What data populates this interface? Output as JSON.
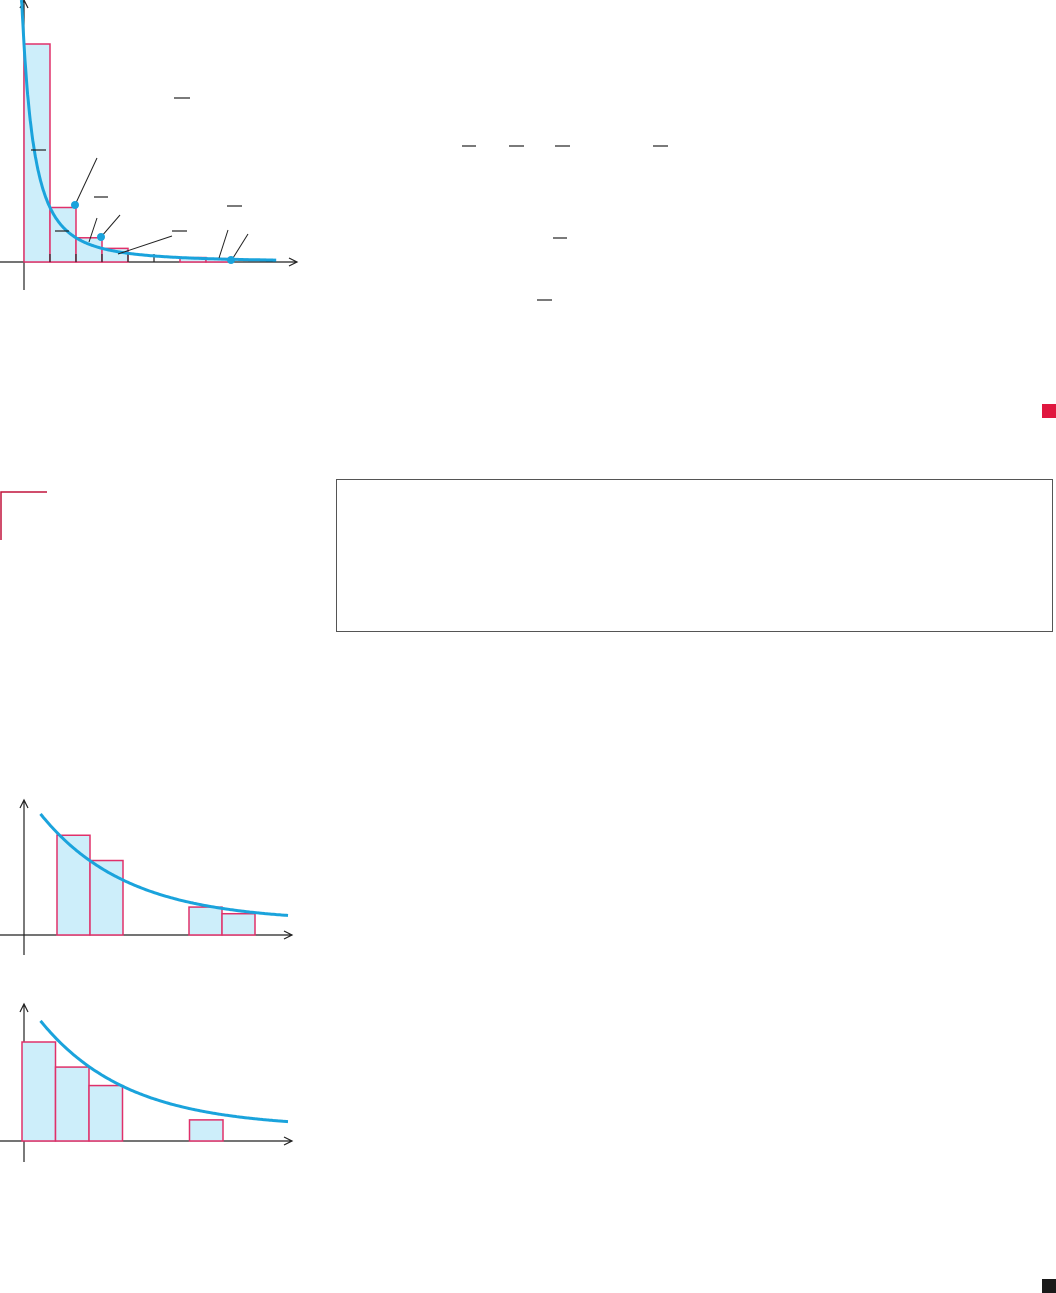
{
  "colors": {
    "bar_fill": "#cdeefa",
    "bar_stroke": "#e0306a",
    "curve": "#1aa3dc",
    "end_marker_red": "#e0173f",
    "end_marker_black": "#1a1a1a"
  },
  "figures": [
    {
      "id": "figure-1",
      "bars": [
        {
          "x0": 1,
          "x1": 2,
          "height": 1
        },
        {
          "x0": 2,
          "x1": 3,
          "height": 0.25
        },
        {
          "x0": 3,
          "x1": 4,
          "height": 0.1111
        },
        {
          "x0": 4,
          "x1": 5,
          "height": 0.0625
        },
        {
          "x0": 7,
          "x1": 8,
          "height": 0.0204
        },
        {
          "x0": 8,
          "x1": 9,
          "height": 0.0156
        }
      ],
      "curve": "y = 1/x^2",
      "marked_points_x": [
        3,
        4,
        9
      ]
    },
    {
      "id": "figure-2",
      "bars": [
        {
          "x0": 1,
          "x1": 2,
          "height": 0.75
        },
        {
          "x0": 2,
          "x1": 3,
          "height": 0.56
        },
        {
          "x0": 5,
          "x1": 6,
          "height": 0.21
        },
        {
          "x0": 6,
          "x1": 7,
          "height": 0.16
        }
      ],
      "curve": "decreasing"
    },
    {
      "id": "figure-3",
      "bars": [
        {
          "x0": 0,
          "x1": 1,
          "height": 0.75
        },
        {
          "x0": 1,
          "x1": 2,
          "height": 0.56
        },
        {
          "x0": 2,
          "x1": 3,
          "height": 0.42
        },
        {
          "x0": 5,
          "x1": 6,
          "height": 0.16
        }
      ],
      "curve": "decreasing"
    }
  ]
}
